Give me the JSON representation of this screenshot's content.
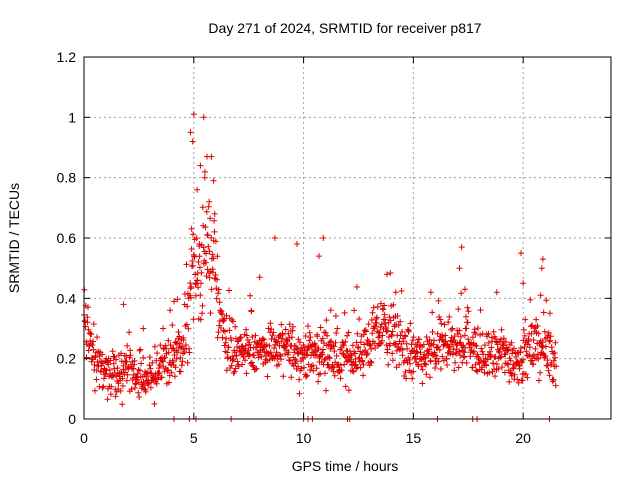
{
  "chart_data": {
    "type": "scatter",
    "title": "Day 271 of 2024, SRMTID for receiver p817",
    "xlabel": "GPS time / hours",
    "ylabel": "SRMTID / TECUs",
    "xlim": [
      0,
      24
    ],
    "ylim": [
      0,
      1.2
    ],
    "xticks": [
      0,
      5,
      10,
      15,
      20
    ],
    "yticks": [
      0,
      0.2,
      0.4,
      0.6,
      0.8,
      1,
      1.2
    ],
    "grid": true,
    "marker": "+",
    "marker_color": "#e00000",
    "series": [
      {
        "name": "SRMTID",
        "profile_x": [
          0.0,
          0.2,
          0.5,
          1.0,
          1.5,
          2.0,
          2.5,
          3.0,
          3.5,
          4.0,
          4.5,
          4.8,
          5.0,
          5.3,
          5.6,
          6.0,
          6.5,
          7.0,
          7.5,
          8.0,
          8.5,
          9.0,
          9.5,
          10.0,
          10.5,
          11.0,
          11.5,
          12.0,
          12.5,
          13.0,
          13.5,
          14.0,
          14.5,
          15.0,
          15.5,
          16.0,
          16.5,
          17.0,
          17.5,
          18.0,
          18.5,
          19.0,
          19.5,
          20.0,
          20.5,
          21.0,
          21.5
        ],
        "profile_y": [
          0.33,
          0.3,
          0.2,
          0.17,
          0.16,
          0.16,
          0.14,
          0.15,
          0.17,
          0.2,
          0.25,
          0.35,
          0.45,
          0.5,
          0.55,
          0.45,
          0.25,
          0.22,
          0.22,
          0.23,
          0.24,
          0.23,
          0.23,
          0.21,
          0.22,
          0.22,
          0.2,
          0.2,
          0.22,
          0.25,
          0.3,
          0.28,
          0.24,
          0.2,
          0.2,
          0.22,
          0.25,
          0.24,
          0.28,
          0.2,
          0.2,
          0.22,
          0.2,
          0.2,
          0.24,
          0.23,
          0.2
        ],
        "spikes": [
          [
            5.0,
            1.01
          ],
          [
            4.85,
            0.95
          ],
          [
            4.95,
            0.92
          ],
          [
            5.45,
            1.0
          ],
          [
            5.6,
            0.87
          ],
          [
            5.8,
            0.87
          ],
          [
            5.3,
            0.84
          ],
          [
            5.5,
            0.8
          ],
          [
            5.9,
            0.79
          ],
          [
            5.15,
            0.76
          ],
          [
            5.7,
            0.72
          ],
          [
            4.9,
            0.63
          ],
          [
            5.25,
            0.58
          ],
          [
            5.95,
            0.68
          ],
          [
            8.7,
            0.6
          ],
          [
            9.7,
            0.58
          ],
          [
            10.9,
            0.6
          ],
          [
            10.7,
            0.54
          ],
          [
            13.8,
            0.48
          ],
          [
            17.2,
            0.57
          ],
          [
            17.1,
            0.5
          ],
          [
            17.35,
            0.43
          ],
          [
            19.9,
            0.55
          ],
          [
            20.9,
            0.53
          ],
          [
            20.85,
            0.5
          ],
          [
            20.8,
            0.41
          ],
          [
            20.0,
            0.45
          ],
          [
            8.0,
            0.47
          ],
          [
            12.3,
            0.36
          ],
          [
            14.2,
            0.42
          ],
          [
            4.1,
            0.39
          ],
          [
            1.8,
            0.38
          ],
          [
            2.7,
            0.3
          ],
          [
            3.6,
            0.3
          ],
          [
            15.8,
            0.42
          ],
          [
            18.8,
            0.42
          ]
        ],
        "zero_points": [
          4.1,
          4.8,
          5.1,
          6.7,
          10.0,
          10.2,
          10.4,
          12.0,
          12.1,
          16.1,
          17.7,
          17.9,
          21.2
        ],
        "n_points": 1300,
        "seed": 271
      }
    ]
  }
}
